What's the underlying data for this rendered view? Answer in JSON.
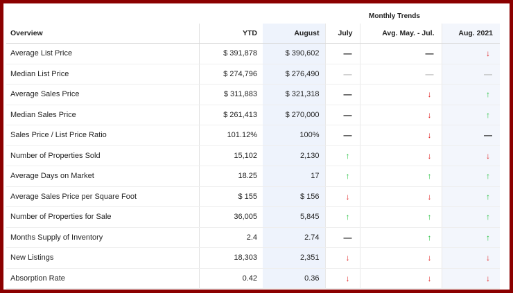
{
  "header": {
    "group_label": "Monthly Trends",
    "columns": [
      "Overview",
      "YTD",
      "August",
      "July",
      "Avg. May. - Jul.",
      "Aug. 2021"
    ]
  },
  "rows": [
    {
      "metric": "Average List Price",
      "ytd": "$ 391,878",
      "august": "$ 390,602",
      "july": "flat",
      "avg": "flat",
      "aug2021": "down"
    },
    {
      "metric": "Median List Price",
      "ytd": "$ 274,796",
      "august": "$ 276,490",
      "july": "flat-light",
      "avg": "flat-light",
      "aug2021": "flat-light"
    },
    {
      "metric": "Average Sales Price",
      "ytd": "$ 311,883",
      "august": "$ 321,318",
      "july": "flat",
      "avg": "down",
      "aug2021": "up"
    },
    {
      "metric": "Median Sales Price",
      "ytd": "$ 261,413",
      "august": "$ 270,000",
      "july": "flat",
      "avg": "down",
      "aug2021": "up"
    },
    {
      "metric": "Sales Price / List Price Ratio",
      "ytd": "101.12%",
      "august": "100%",
      "july": "flat",
      "avg": "down",
      "aug2021": "flat"
    },
    {
      "metric": "Number of Properties Sold",
      "ytd": "15,102",
      "august": "2,130",
      "july": "up",
      "avg": "down",
      "aug2021": "down"
    },
    {
      "metric": "Average Days on Market",
      "ytd": "18.25",
      "august": "17",
      "july": "up",
      "avg": "up",
      "aug2021": "up"
    },
    {
      "metric": "Average Sales Price per Square Foot",
      "ytd": "$ 155",
      "august": "$ 156",
      "july": "down",
      "avg": "down",
      "aug2021": "up"
    },
    {
      "metric": "Number of Properties for Sale",
      "ytd": "36,005",
      "august": "5,845",
      "july": "up",
      "avg": "up",
      "aug2021": "up"
    },
    {
      "metric": "Months Supply of Inventory",
      "ytd": "2.4",
      "august": "2.74",
      "july": "flat",
      "avg": "up",
      "aug2021": "up"
    },
    {
      "metric": "New Listings",
      "ytd": "18,303",
      "august": "2,351",
      "july": "down",
      "avg": "down",
      "aug2021": "down"
    },
    {
      "metric": "Absorption Rate",
      "ytd": "0.42",
      "august": "0.36",
      "july": "down",
      "avg": "down",
      "aug2021": "down"
    }
  ],
  "colors": {
    "frame": "#8b0000",
    "up": "#1fbf3a",
    "down": "#e02020",
    "highlight": "#e9f0fb"
  },
  "icons": {
    "up": "arrow-up-icon",
    "down": "arrow-down-icon",
    "flat": "dash-icon"
  }
}
